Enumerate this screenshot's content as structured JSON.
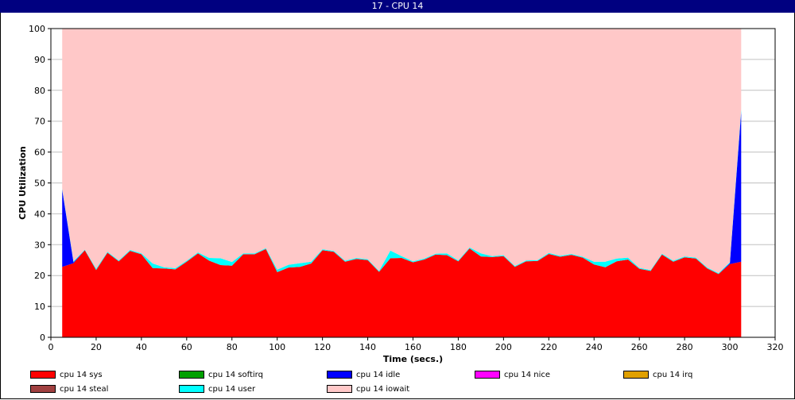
{
  "window": {
    "title": "17 - CPU 14"
  },
  "chart_data": {
    "type": "area",
    "title": "17 - CPU 14",
    "xlabel": "Time (secs.)",
    "ylabel": "CPU Utilization",
    "xlim": [
      0,
      320
    ],
    "ylim": [
      0,
      100
    ],
    "x_ticks": [
      0,
      20,
      40,
      60,
      80,
      100,
      120,
      140,
      160,
      180,
      200,
      220,
      240,
      260,
      280,
      300,
      320
    ],
    "y_ticks": [
      0,
      10,
      20,
      30,
      40,
      50,
      60,
      70,
      80,
      90,
      100
    ],
    "grid": "horizontal",
    "stacked": true,
    "x": [
      5,
      10,
      15,
      20,
      25,
      30,
      35,
      40,
      45,
      50,
      55,
      60,
      65,
      70,
      75,
      80,
      85,
      90,
      95,
      100,
      105,
      110,
      115,
      120,
      125,
      130,
      135,
      140,
      145,
      150,
      155,
      160,
      165,
      170,
      175,
      180,
      185,
      190,
      195,
      200,
      205,
      210,
      215,
      220,
      225,
      230,
      235,
      240,
      245,
      250,
      255,
      260,
      265,
      270,
      275,
      280,
      285,
      290,
      295,
      300,
      305
    ],
    "series": [
      {
        "name": "cpu 14 sys",
        "color": "#ff0000",
        "values": [
          22.8,
          24.0,
          28.2,
          21.8,
          27.4,
          24.6,
          28.0,
          26.9,
          22.4,
          22.3,
          22.0,
          24.5,
          27.2,
          24.8,
          23.4,
          23.2,
          26.9,
          26.9,
          28.6,
          21.1,
          22.6,
          22.8,
          23.9,
          28.2,
          27.7,
          24.5,
          25.4,
          25.0,
          21.2,
          25.6,
          25.7,
          24.3,
          25.2,
          26.8,
          26.6,
          24.6,
          28.8,
          26.2,
          26.0,
          26.3,
          22.8,
          24.6,
          24.7,
          27.0,
          26.1,
          26.7,
          25.8,
          23.6,
          22.7,
          24.6,
          25.2,
          22.2,
          21.5,
          26.8,
          24.5,
          25.9,
          25.5,
          22.3,
          20.5,
          23.7,
          24.5
        ]
      },
      {
        "name": "cpu 14 softirq",
        "color": "#00a000",
        "values": [
          0,
          0,
          0,
          0,
          0,
          0,
          0,
          0,
          0,
          0,
          0,
          0,
          0,
          0,
          0,
          0,
          0,
          0,
          0,
          0,
          0,
          0,
          0,
          0,
          0,
          0,
          0,
          0,
          0,
          0,
          0,
          0,
          0,
          0,
          0,
          0,
          0,
          0,
          0,
          0,
          0,
          0,
          0,
          0,
          0,
          0,
          0,
          0,
          0,
          0,
          0,
          0,
          0,
          0,
          0,
          0,
          0,
          0,
          0,
          0,
          0
        ]
      },
      {
        "name": "cpu 14 idle",
        "color": "#0000ff",
        "values": [
          25.0,
          0.3,
          0,
          0,
          0,
          0,
          0,
          0,
          0,
          0,
          0,
          0,
          0,
          0,
          0,
          0,
          0,
          0,
          0,
          0,
          0,
          0,
          0,
          0,
          0,
          0,
          0,
          0,
          0,
          0,
          0,
          0,
          0,
          0,
          0,
          0,
          0,
          0,
          0,
          0,
          0,
          0,
          0,
          0,
          0,
          0,
          0,
          0,
          0,
          0,
          0,
          0,
          0,
          0,
          0,
          0,
          0,
          0,
          0,
          0.3,
          48.5
        ]
      },
      {
        "name": "cpu 14 nice",
        "color": "#ff00ff",
        "values": [
          0,
          0,
          0,
          0,
          0,
          0,
          0,
          0,
          0,
          0,
          0,
          0,
          0,
          0,
          0,
          0,
          0,
          0,
          0,
          0,
          0,
          0,
          0,
          0,
          0,
          0,
          0,
          0,
          0,
          0,
          0,
          0,
          0,
          0,
          0,
          0,
          0,
          0,
          0,
          0,
          0,
          0,
          0,
          0,
          0,
          0,
          0,
          0,
          0,
          0,
          0,
          0,
          0,
          0,
          0,
          0,
          0,
          0,
          0,
          0,
          0
        ]
      },
      {
        "name": "cpu 14 irq",
        "color": "#e0a000",
        "values": [
          0,
          0,
          0,
          0,
          0,
          0,
          0,
          0,
          0,
          0,
          0,
          0,
          0,
          0,
          0,
          0,
          0,
          0,
          0,
          0,
          0,
          0,
          0,
          0,
          0,
          0,
          0,
          0,
          0,
          0,
          0,
          0,
          0,
          0,
          0,
          0,
          0,
          0,
          0,
          0,
          0,
          0,
          0,
          0,
          0,
          0,
          0,
          0,
          0,
          0,
          0,
          0,
          0,
          0,
          0,
          0,
          0,
          0,
          0,
          0,
          0
        ]
      },
      {
        "name": "cpu 14 steal",
        "color": "#a04040",
        "values": [
          0,
          0,
          0,
          0,
          0,
          0,
          0,
          0,
          0,
          0,
          0,
          0,
          0,
          0,
          0,
          0,
          0,
          0,
          0,
          0,
          0,
          0,
          0,
          0,
          0,
          0,
          0,
          0,
          0,
          0,
          0,
          0,
          0,
          0,
          0,
          0,
          0,
          0,
          0,
          0,
          0,
          0,
          0,
          0,
          0,
          0,
          0,
          0,
          0,
          0,
          0,
          0,
          0,
          0,
          0,
          0,
          0,
          0,
          0,
          0,
          0
        ]
      },
      {
        "name": "cpu 14 user",
        "color": "#00ffff",
        "values": [
          0.3,
          0.3,
          0.2,
          0.4,
          0.3,
          0.3,
          0.3,
          0.3,
          1.5,
          0.4,
          0.4,
          0.3,
          0.3,
          0.9,
          2.2,
          1.2,
          0.3,
          0.3,
          0.3,
          0.8,
          0.9,
          1.2,
          0.6,
          0.3,
          0.3,
          0.3,
          0.3,
          0.3,
          0.3,
          2.5,
          0.6,
          0.3,
          0.3,
          0.3,
          0.6,
          0.3,
          0.3,
          1.0,
          0.3,
          0.3,
          0.3,
          0.3,
          0.3,
          0.3,
          0.3,
          0.3,
          0.3,
          0.9,
          1.8,
          0.9,
          0.6,
          0.3,
          0.3,
          0.3,
          0.3,
          0.3,
          0.3,
          0.3,
          0.3,
          0.3,
          0.8
        ]
      },
      {
        "name": "cpu 14 iowait",
        "color": "#ffc8c8",
        "values": [
          51.9,
          75.4,
          71.6,
          77.8,
          72.3,
          75.1,
          71.7,
          72.8,
          76.1,
          77.3,
          77.6,
          75.2,
          72.5,
          74.3,
          74.4,
          75.6,
          72.8,
          72.8,
          71.1,
          78.1,
          76.5,
          76.0,
          75.5,
          71.5,
          72.0,
          75.2,
          74.3,
          74.7,
          78.5,
          71.9,
          73.7,
          75.4,
          74.5,
          72.9,
          72.8,
          75.1,
          70.9,
          72.8,
          73.7,
          73.4,
          76.9,
          75.1,
          75.0,
          72.7,
          73.6,
          73.0,
          73.9,
          75.5,
          75.5,
          74.5,
          74.2,
          77.5,
          78.2,
          72.9,
          75.2,
          73.8,
          74.2,
          77.4,
          79.2,
          75.7,
          26.2
        ]
      }
    ],
    "legend": {
      "position": "bottom",
      "items": [
        {
          "label": "cpu 14 sys",
          "color": "#ff0000"
        },
        {
          "label": "cpu 14 softirq",
          "color": "#00a000"
        },
        {
          "label": "cpu 14 idle",
          "color": "#0000ff"
        },
        {
          "label": "cpu 14 nice",
          "color": "#ff00ff"
        },
        {
          "label": "cpu 14 irq",
          "color": "#e0a000"
        },
        {
          "label": "cpu 14 steal",
          "color": "#a04040"
        },
        {
          "label": "cpu 14 user",
          "color": "#00ffff"
        },
        {
          "label": "cpu 14 iowait",
          "color": "#ffc8c8"
        }
      ]
    }
  }
}
